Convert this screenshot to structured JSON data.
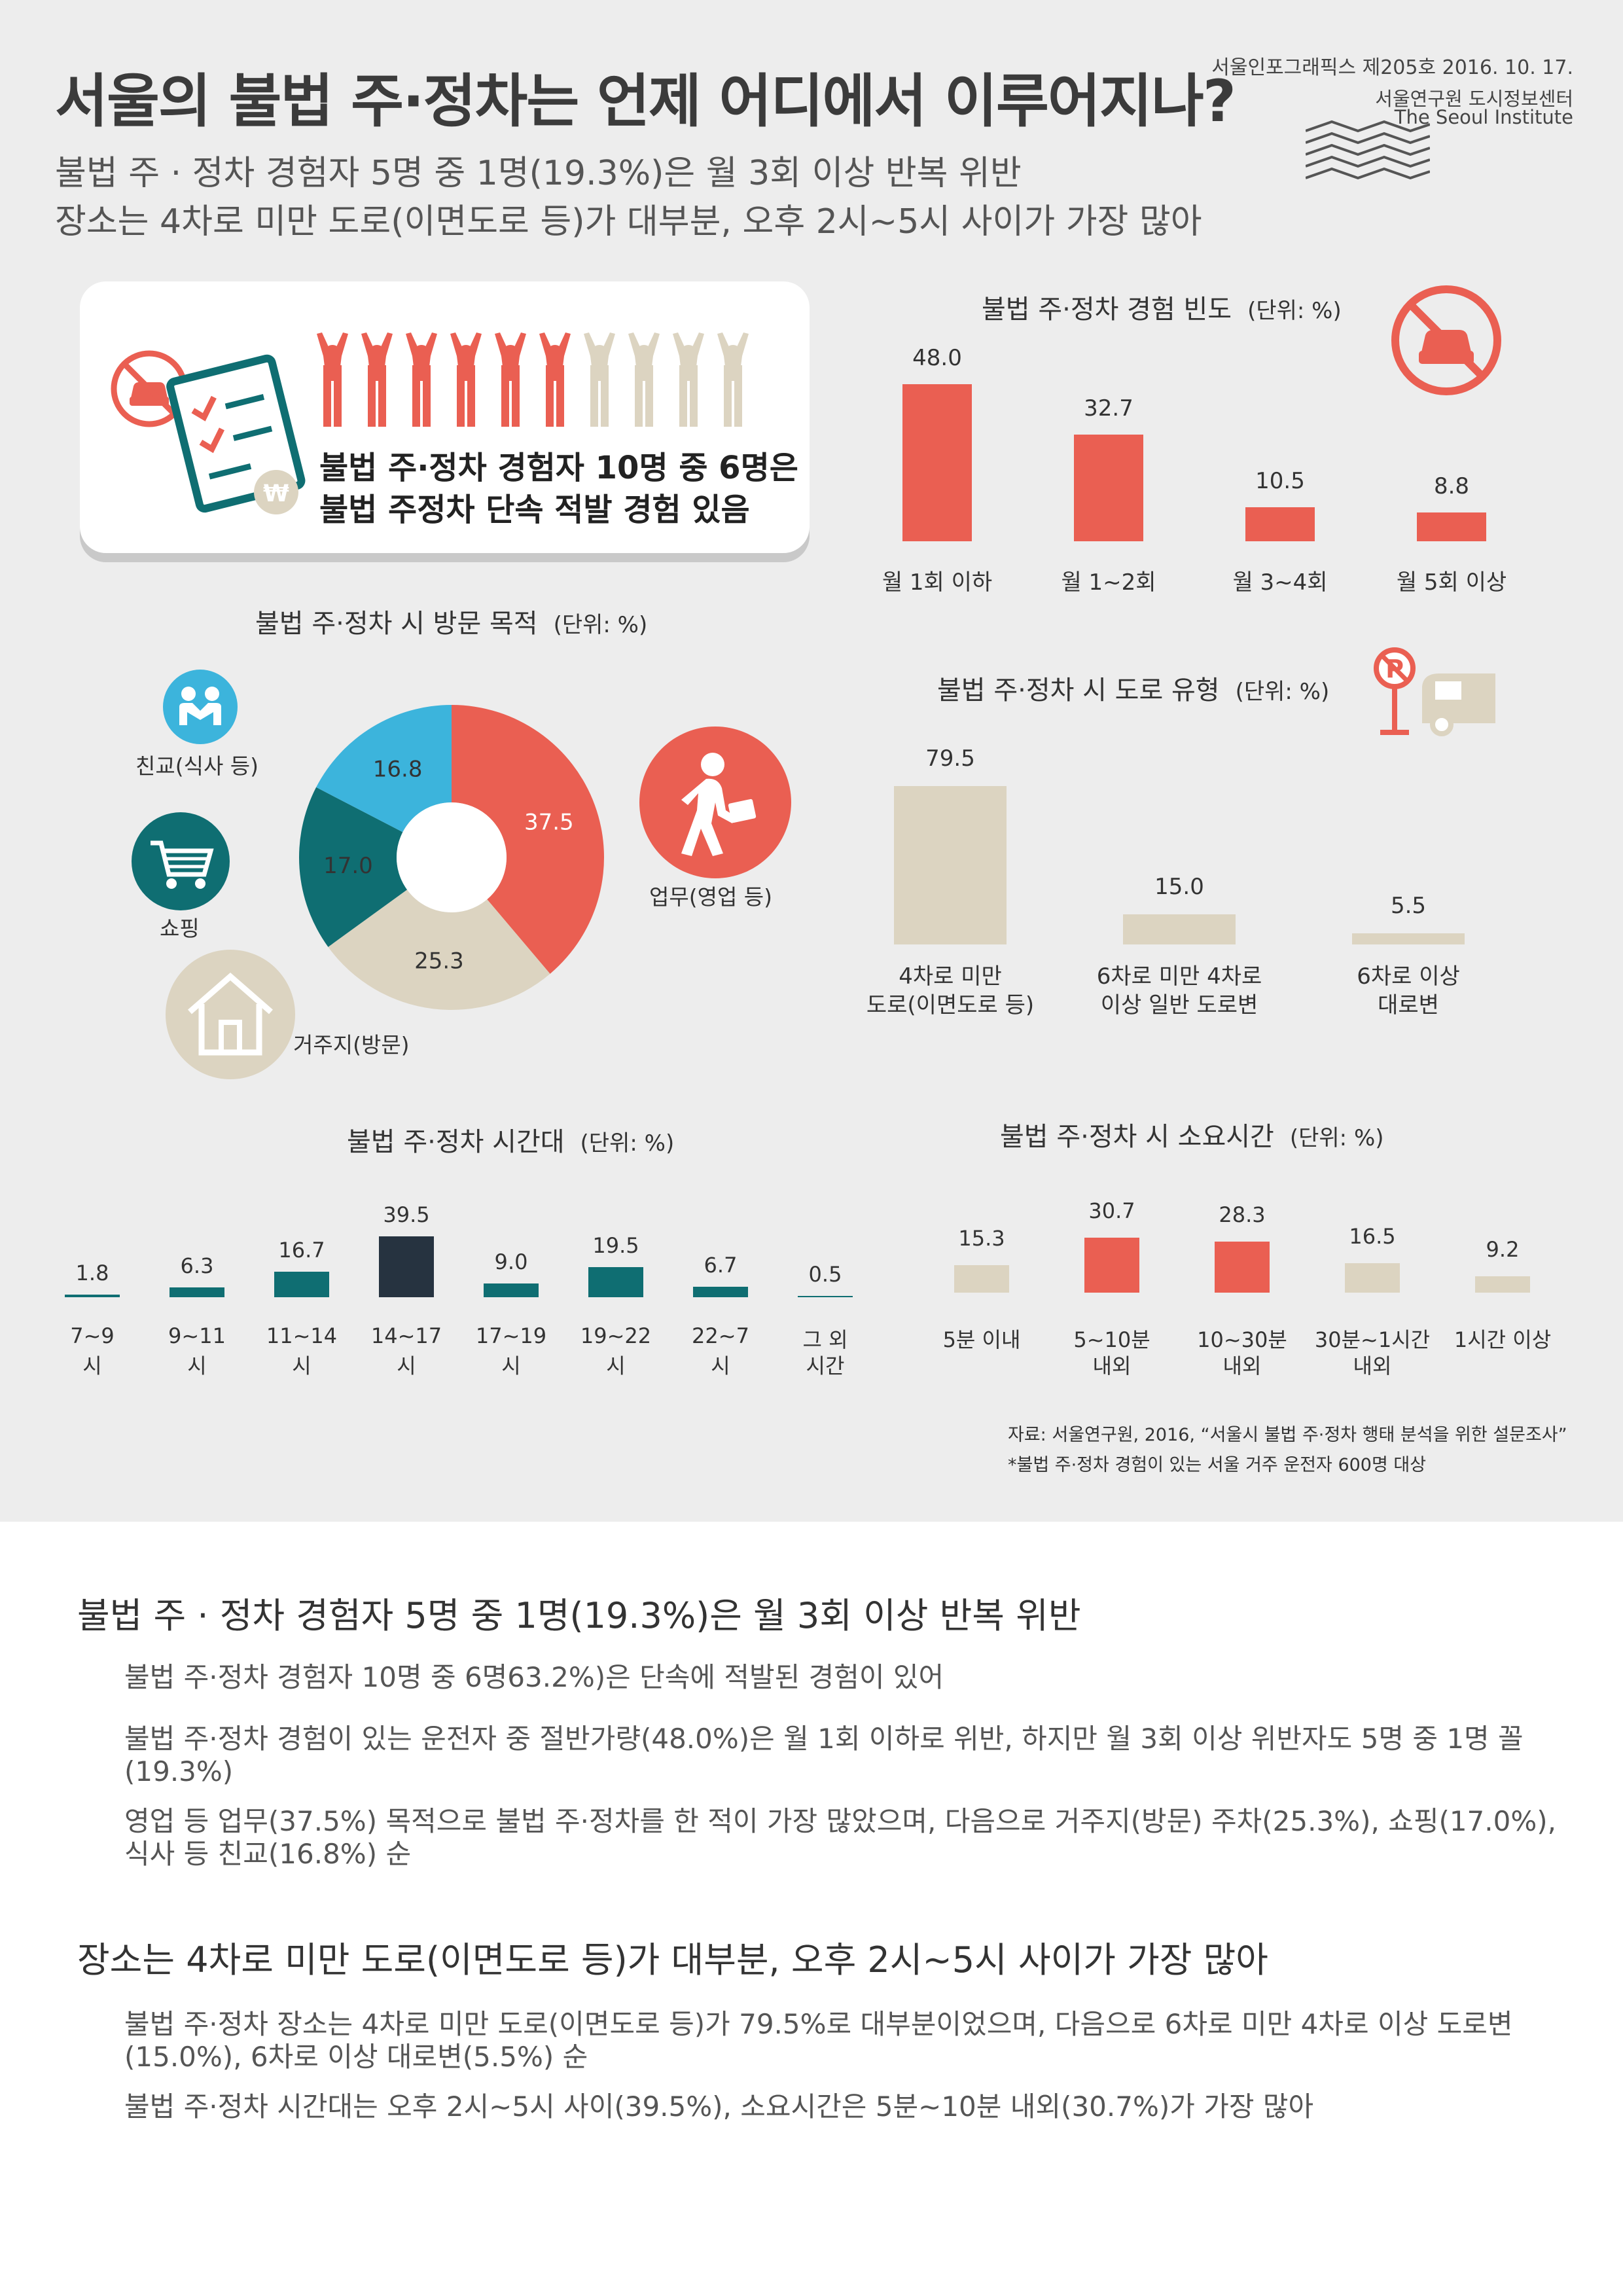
{
  "header": {
    "title": "서울의 불법 주·정차는 언제 어디에서 이루어지나?",
    "subtitle1": "불법 주 · 정차 경험자 5명 중 1명(19.3%)은 월 3회 이상 반복 위반",
    "subtitle2": "장소는 4차로 미만 도로(이면도로 등)가 대부분, 오후 2시~5시 사이가 가장 많아",
    "issue": "서울인포그래픽스 제205호 2016. 10. 17.",
    "institute_ko": "서울연구원 도시정보센터",
    "institute_en": "The Seoul Institute"
  },
  "enforcement": {
    "line1": "불법 주·정차 경험자 10명 중 6명은",
    "line2": "불법 주정차 단속 적발 경험 있음",
    "people_total": 10,
    "people_highlighted": 6
  },
  "colors": {
    "red": "#ea5f52",
    "teal": "#0f6e72",
    "beige": "#dcd4c1",
    "sky": "#3cb4dc",
    "navy": "#263340"
  },
  "chart_data": [
    {
      "id": "frequency",
      "type": "bar",
      "title": "불법 주·정차 경험 빈도",
      "unit": "(단위: %)",
      "categories": [
        "월 1회 이하",
        "월 1~2회",
        "월 3~4회",
        "월 5회 이상"
      ],
      "values": [
        48.0,
        32.7,
        10.5,
        8.8
      ],
      "labels": [
        "48.0",
        "32.7",
        "10.5",
        "8.8"
      ],
      "color": "#ea5f52"
    },
    {
      "id": "purpose",
      "type": "pie",
      "title": "불법 주·정차 시 방문 목적",
      "unit": "(단위: %)",
      "categories": [
        "업무(영업 등)",
        "거주지(방문)",
        "쇼핑",
        "친교(식사 등)"
      ],
      "values": [
        37.5,
        25.3,
        17.0,
        16.8
      ],
      "labels": [
        "37.5",
        "25.3",
        "17.0",
        "16.8"
      ],
      "colors": [
        "#ea5f52",
        "#dcd4c1",
        "#0f6e72",
        "#3cb4dc"
      ]
    },
    {
      "id": "road",
      "type": "bar",
      "title": "불법 주·정차 시 도로 유형",
      "unit": "(단위: %)",
      "categories": [
        [
          "4차로 미만",
          "도로(이면도로 등)"
        ],
        [
          "6차로 미만 4차로",
          "이상 일반 도로변"
        ],
        [
          "6차로 이상",
          "대로변"
        ]
      ],
      "values": [
        79.5,
        15.0,
        5.5
      ],
      "labels": [
        "79.5",
        "15.0",
        "5.5"
      ],
      "color": "#dcd4c1"
    },
    {
      "id": "timeslot",
      "type": "bar",
      "title": "불법 주·정차 시간대",
      "unit": "(단위: %)",
      "categories": [
        [
          "7~9",
          "시"
        ],
        [
          "9~11",
          "시"
        ],
        [
          "11~14",
          "시"
        ],
        [
          "14~17",
          "시"
        ],
        [
          "17~19",
          "시"
        ],
        [
          "19~22",
          "시"
        ],
        [
          "22~7",
          "시"
        ],
        [
          "그 외",
          "시간"
        ]
      ],
      "values": [
        1.8,
        6.3,
        16.7,
        39.5,
        9.0,
        19.5,
        6.7,
        0.5
      ],
      "labels": [
        "1.8",
        "6.3",
        "16.7",
        "39.5",
        "9.0",
        "19.5",
        "6.7",
        "0.5"
      ],
      "colors": [
        "#0f6e72",
        "#0f6e72",
        "#0f6e72",
        "#263340",
        "#0f6e72",
        "#0f6e72",
        "#0f6e72",
        "#0f6e72"
      ]
    },
    {
      "id": "duration",
      "type": "bar",
      "title": "불법 주·정차 시 소요시간",
      "unit": "(단위: %)",
      "categories": [
        [
          "5분 이내"
        ],
        [
          "5~10분",
          "내외"
        ],
        [
          "10~30분",
          "내외"
        ],
        [
          "30분~1시간",
          "내외"
        ],
        [
          "1시간 이상"
        ]
      ],
      "values": [
        15.3,
        30.7,
        28.3,
        16.5,
        9.2
      ],
      "labels": [
        "15.3",
        "30.7",
        "28.3",
        "16.5",
        "9.2"
      ],
      "colors": [
        "#dcd4c1",
        "#ea5f52",
        "#ea5f52",
        "#dcd4c1",
        "#dcd4c1"
      ]
    }
  ],
  "source": {
    "line1": "자료: 서울연구원, 2016, “서울시 불법 주·정차 행태 분석을 위한 설문조사”",
    "line2": "*불법 주·정차 경험이 있는 서울 거주 운전자 600명 대상"
  },
  "summary": {
    "h1": "불법 주 · 정차 경험자 5명 중 1명(19.3%)은 월 3회 이상 반복 위반",
    "p1": "불법 주·정차 경험자 10명 중 6명63.2%)은 단속에 적발된 경험이 있어",
    "p2": "불법 주·정차 경험이 있는 운전자 중 절반가량(48.0%)은 월 1회 이하로 위반, 하지만 월 3회 이상 위반자도 5명 중 1명 꼴 (19.3%)",
    "p3": "영업 등 업무(37.5%) 목적으로 불법 주·정차를 한 적이 가장 많았으며, 다음으로 거주지(방문) 주차(25.3%), 쇼핑(17.0%), 식사 등 친교(16.8%) 순",
    "h2": "장소는 4차로 미만 도로(이면도로 등)가 대부분, 오후 2시~5시 사이가 가장 많아",
    "p4": "불법 주·정차 장소는 4차로 미만 도로(이면도로 등)가 79.5%로 대부분이었으며, 다음으로 6차로 미만 4차로 이상 도로변 (15.0%), 6차로 이상 대로변(5.5%) 순",
    "p5": "불법 주·정차 시간대는 오후 2시~5시 사이(39.5%), 소요시간은 5분~10분 내외(30.7%)가 가장 많아"
  }
}
